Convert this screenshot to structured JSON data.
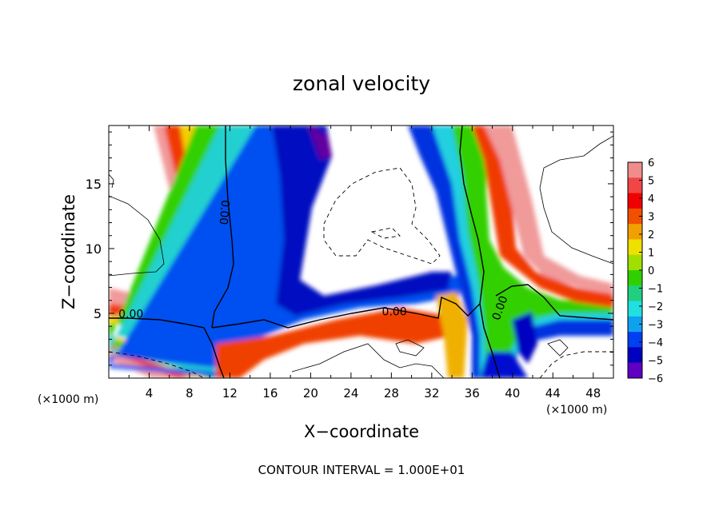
{
  "chart_data": {
    "type": "heatmap",
    "title": "zonal velocity",
    "xlabel": "X−coordinate",
    "ylabel": "Z−coordinate",
    "xunits_left": "(×1000 m)",
    "xunits_right": "(×1000 m)",
    "xlim": [
      0,
      50
    ],
    "ylim": [
      0,
      19.5
    ],
    "xticks": [
      4,
      8,
      12,
      16,
      20,
      24,
      28,
      32,
      36,
      40,
      44,
      48
    ],
    "yticks": [
      5,
      10,
      15
    ],
    "footer": "CONTOUR INTERVAL = 1.000E+01",
    "colorbar": {
      "labels": [
        "6",
        "5",
        "4",
        "3",
        "2",
        "1",
        "0",
        "−1",
        "−2",
        "−3",
        "−4",
        "−5",
        "−6"
      ],
      "colors": [
        "#f08c8c",
        "#f04646",
        "#f00000",
        "#f05000",
        "#f0a000",
        "#f0e000",
        "#a0e000",
        "#30d000",
        "#20d080",
        "#20e0e0",
        "#10a0f0",
        "#0040f0",
        "#0000c0",
        "#6000c0"
      ]
    },
    "contour_labels": [
      {
        "text": "0.00",
        "x": 2.2,
        "y": 4.9,
        "rotate": 0
      },
      {
        "text": "0.00",
        "x": 11.4,
        "y": 12.8,
        "rotate": 95
      },
      {
        "text": "0.00",
        "x": 28.3,
        "y": 5.1,
        "rotate": 0
      },
      {
        "text": "0.00",
        "x": 38.8,
        "y": 5.4,
        "rotate": -70
      }
    ]
  }
}
